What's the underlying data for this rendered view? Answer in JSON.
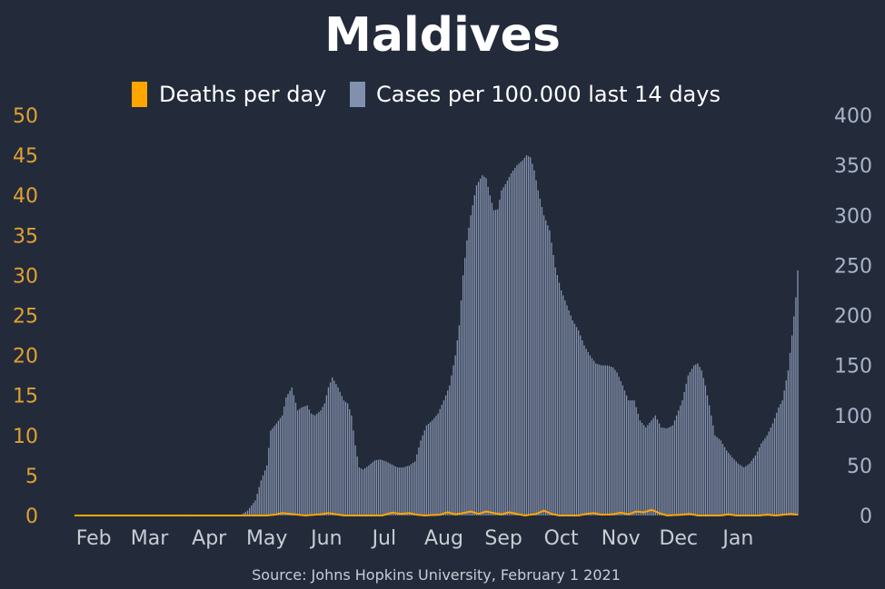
{
  "chart_data": {
    "type": "bar",
    "title": "Maldives",
    "source": "Source: Johns Hopkins University, February 1 2021",
    "legend": [
      {
        "label": "Deaths per day",
        "color": "#ffa500"
      },
      {
        "label": "Cases per 100.000 last 14 days",
        "color": "#8090ad"
      }
    ],
    "y_left": {
      "min": 0,
      "max": 50,
      "ticks": [
        "0",
        "5",
        "10",
        "15",
        "20",
        "25",
        "30",
        "35",
        "40",
        "45",
        "50"
      ],
      "color": "#e0a030"
    },
    "y_right": {
      "min": 0,
      "max": 400,
      "ticks": [
        "0",
        "50",
        "100",
        "150",
        "200",
        "250",
        "300",
        "350",
        "400"
      ],
      "color": "#a9b4c8"
    },
    "x_ticks": [
      {
        "label": "Feb",
        "day": 10
      },
      {
        "label": "Mar",
        "day": 39
      },
      {
        "label": "Apr",
        "day": 70
      },
      {
        "label": "May",
        "day": 100
      },
      {
        "label": "Jun",
        "day": 131
      },
      {
        "label": "Jul",
        "day": 161
      },
      {
        "label": "Aug",
        "day": 192
      },
      {
        "label": "Sep",
        "day": 223
      },
      {
        "label": "Oct",
        "day": 253
      },
      {
        "label": "Nov",
        "day": 284
      },
      {
        "label": "Dec",
        "day": 314
      },
      {
        "label": "Jan",
        "day": 345
      }
    ],
    "x_range": [
      0,
      376
    ],
    "cases_series": {
      "name": "Cases per 100.000 last 14 days",
      "axis": "right",
      "points": [
        [
          0,
          0
        ],
        [
          50,
          0
        ],
        [
          54,
          1
        ],
        [
          60,
          1
        ],
        [
          65,
          0
        ],
        [
          86,
          0
        ],
        [
          90,
          5
        ],
        [
          94,
          15
        ],
        [
          97,
          35
        ],
        [
          100,
          50
        ],
        [
          102,
          85
        ],
        [
          105,
          92
        ],
        [
          108,
          100
        ],
        [
          110,
          118
        ],
        [
          113,
          128
        ],
        [
          116,
          105
        ],
        [
          118,
          108
        ],
        [
          121,
          110
        ],
        [
          123,
          102
        ],
        [
          125,
          100
        ],
        [
          128,
          105
        ],
        [
          130,
          112
        ],
        [
          132,
          128
        ],
        [
          134,
          138
        ],
        [
          137,
          128
        ],
        [
          140,
          115
        ],
        [
          142,
          112
        ],
        [
          144,
          100
        ],
        [
          146,
          70
        ],
        [
          148,
          48
        ],
        [
          150,
          46
        ],
        [
          153,
          50
        ],
        [
          156,
          55
        ],
        [
          159,
          56
        ],
        [
          162,
          54
        ],
        [
          165,
          51
        ],
        [
          168,
          48
        ],
        [
          171,
          48
        ],
        [
          174,
          50
        ],
        [
          177,
          54
        ],
        [
          180,
          75
        ],
        [
          183,
          90
        ],
        [
          186,
          95
        ],
        [
          189,
          102
        ],
        [
          192,
          115
        ],
        [
          195,
          130
        ],
        [
          198,
          160
        ],
        [
          200,
          190
        ],
        [
          202,
          240
        ],
        [
          204,
          275
        ],
        [
          206,
          300
        ],
        [
          209,
          330
        ],
        [
          212,
          340
        ],
        [
          214,
          337
        ],
        [
          216,
          320
        ],
        [
          218,
          305
        ],
        [
          220,
          306
        ],
        [
          222,
          325
        ],
        [
          224,
          331
        ],
        [
          227,
          342
        ],
        [
          230,
          350
        ],
        [
          233,
          355
        ],
        [
          235,
          360
        ],
        [
          237,
          358
        ],
        [
          239,
          345
        ],
        [
          241,
          325
        ],
        [
          244,
          300
        ],
        [
          247,
          285
        ],
        [
          250,
          248
        ],
        [
          253,
          225
        ],
        [
          256,
          210
        ],
        [
          259,
          195
        ],
        [
          262,
          185
        ],
        [
          265,
          170
        ],
        [
          268,
          160
        ],
        [
          271,
          152
        ],
        [
          274,
          150
        ],
        [
          277,
          150
        ],
        [
          280,
          148
        ],
        [
          282,
          143
        ],
        [
          285,
          130
        ],
        [
          288,
          115
        ],
        [
          291,
          115
        ],
        [
          294,
          95
        ],
        [
          297,
          88
        ],
        [
          300,
          95
        ],
        [
          302,
          100
        ],
        [
          305,
          88
        ],
        [
          308,
          87
        ],
        [
          311,
          90
        ],
        [
          314,
          105
        ],
        [
          316,
          115
        ],
        [
          319,
          140
        ],
        [
          322,
          150
        ],
        [
          324,
          152
        ],
        [
          326,
          145
        ],
        [
          328,
          130
        ],
        [
          330,
          110
        ],
        [
          333,
          80
        ],
        [
          336,
          75
        ],
        [
          339,
          65
        ],
        [
          342,
          58
        ],
        [
          345,
          52
        ],
        [
          348,
          48
        ],
        [
          351,
          52
        ],
        [
          354,
          60
        ],
        [
          357,
          72
        ],
        [
          360,
          80
        ],
        [
          363,
          92
        ],
        [
          366,
          108
        ],
        [
          368,
          115
        ],
        [
          371,
          145
        ],
        [
          373,
          180
        ],
        [
          375,
          218
        ],
        [
          376,
          245
        ]
      ]
    },
    "deaths_series": {
      "name": "Deaths per day",
      "axis": "left",
      "points": [
        [
          0,
          0
        ],
        [
          100,
          0
        ],
        [
          104,
          0.1
        ],
        [
          108,
          0.3
        ],
        [
          112,
          0.2
        ],
        [
          116,
          0.1
        ],
        [
          120,
          0
        ],
        [
          128,
          0.15
        ],
        [
          132,
          0.3
        ],
        [
          136,
          0.15
        ],
        [
          140,
          0
        ],
        [
          160,
          0
        ],
        [
          165,
          0.35
        ],
        [
          170,
          0.2
        ],
        [
          174,
          0.3
        ],
        [
          178,
          0.1
        ],
        [
          182,
          0
        ],
        [
          190,
          0.1
        ],
        [
          194,
          0.4
        ],
        [
          198,
          0.15
        ],
        [
          202,
          0.3
        ],
        [
          206,
          0.5
        ],
        [
          210,
          0.2
        ],
        [
          214,
          0.5
        ],
        [
          218,
          0.3
        ],
        [
          222,
          0.15
        ],
        [
          226,
          0.4
        ],
        [
          230,
          0.2
        ],
        [
          234,
          0
        ],
        [
          240,
          0.2
        ],
        [
          244,
          0.6
        ],
        [
          248,
          0.2
        ],
        [
          252,
          0
        ],
        [
          262,
          0
        ],
        [
          266,
          0.2
        ],
        [
          270,
          0.3
        ],
        [
          274,
          0.1
        ],
        [
          280,
          0.15
        ],
        [
          284,
          0.35
        ],
        [
          288,
          0.15
        ],
        [
          292,
          0.5
        ],
        [
          296,
          0.4
        ],
        [
          300,
          0.7
        ],
        [
          304,
          0.3
        ],
        [
          308,
          0
        ],
        [
          316,
          0.1
        ],
        [
          320,
          0.2
        ],
        [
          324,
          0
        ],
        [
          336,
          0
        ],
        [
          340,
          0.15
        ],
        [
          344,
          0
        ],
        [
          356,
          0
        ],
        [
          360,
          0.1
        ],
        [
          365,
          0
        ],
        [
          372,
          0.2
        ],
        [
          376,
          0.1
        ]
      ]
    }
  }
}
